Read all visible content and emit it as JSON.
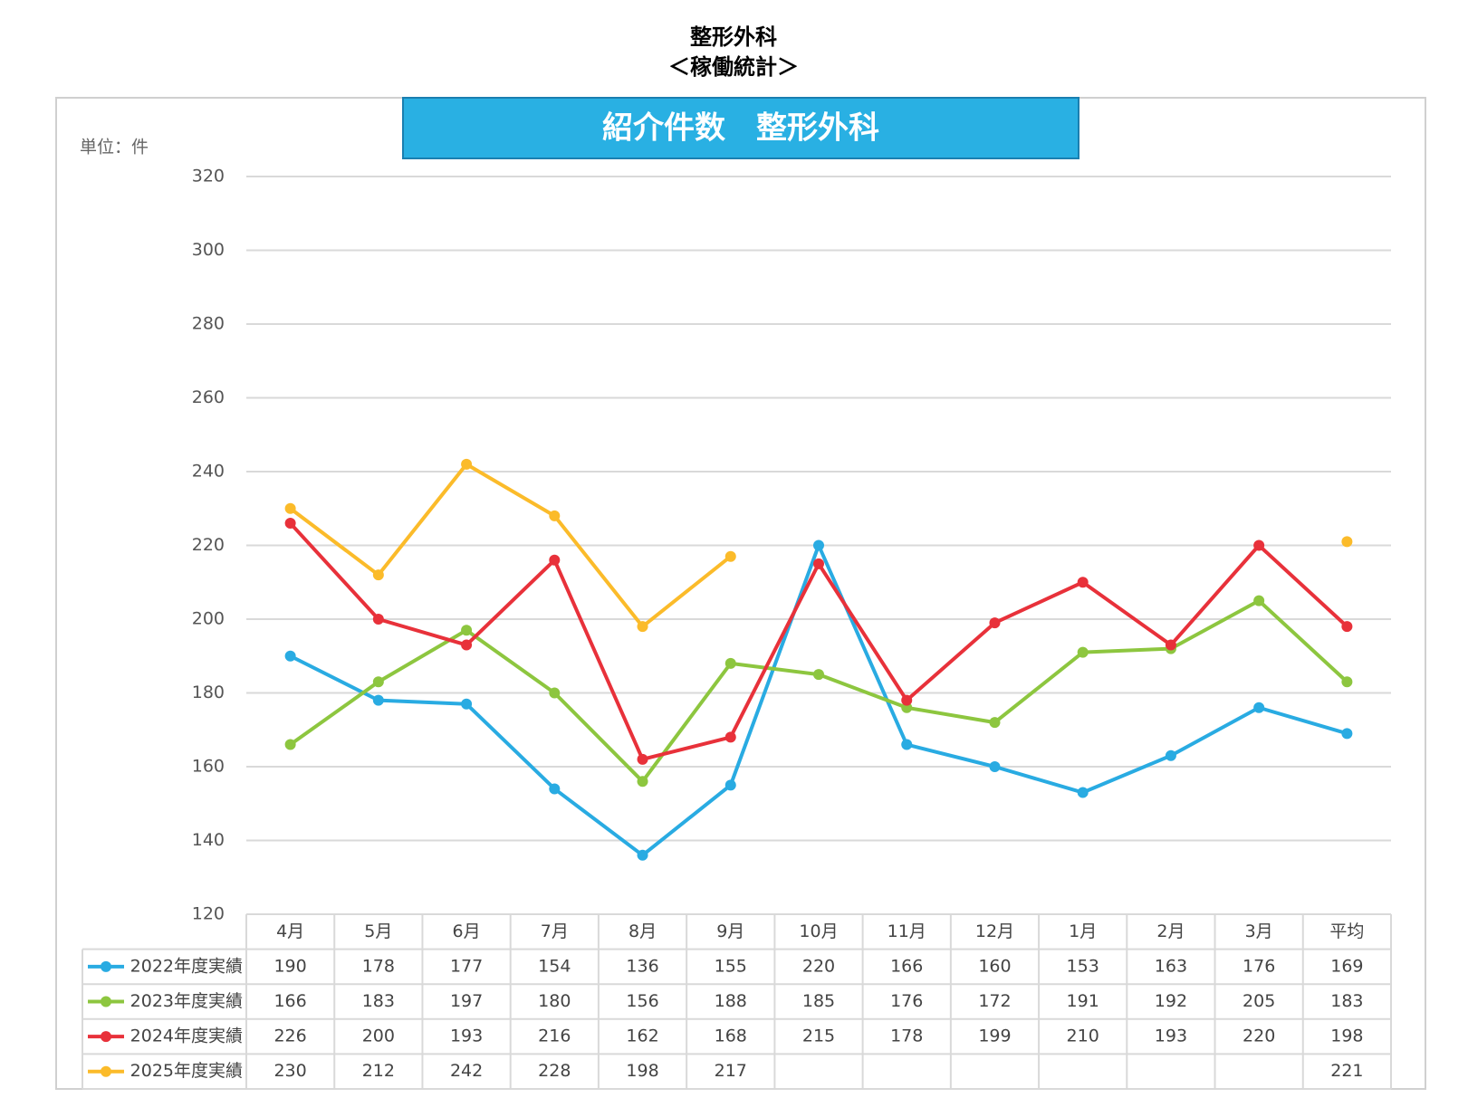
{
  "header": {
    "title": "整形外科",
    "subtitle": "＜稼働統計＞"
  },
  "chart_data": {
    "type": "line",
    "title": "紹介件数　整形外科",
    "unit_label": "単位：件",
    "categories": [
      "4月",
      "5月",
      "6月",
      "7月",
      "8月",
      "9月",
      "10月",
      "11月",
      "12月",
      "1月",
      "2月",
      "3月",
      "平均"
    ],
    "series": [
      {
        "name": "2022年度実績",
        "color": "#29abe2",
        "values": [
          190,
          178,
          177,
          154,
          136,
          155,
          220,
          166,
          160,
          153,
          163,
          176,
          169
        ]
      },
      {
        "name": "2023年度実績",
        "color": "#8dc63f",
        "values": [
          166,
          183,
          197,
          180,
          156,
          188,
          185,
          176,
          172,
          191,
          192,
          205,
          183
        ]
      },
      {
        "name": "2024年度実績",
        "color": "#e8313a",
        "values": [
          226,
          200,
          193,
          216,
          162,
          168,
          215,
          178,
          199,
          210,
          193,
          220,
          198
        ]
      },
      {
        "name": "2025年度実績",
        "color": "#fbbb2a",
        "values": [
          230,
          212,
          242,
          228,
          198,
          217,
          null,
          null,
          null,
          null,
          null,
          null,
          221
        ]
      }
    ],
    "ylim": [
      120,
      320
    ],
    "yticks": [
      120,
      140,
      160,
      180,
      200,
      220,
      240,
      260,
      280,
      300,
      320
    ],
    "grid": true
  }
}
